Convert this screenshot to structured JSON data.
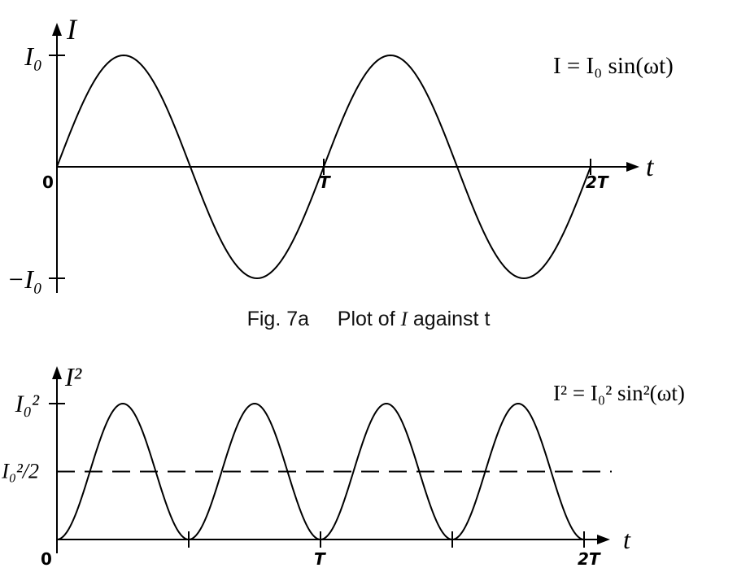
{
  "figure_a": {
    "caption_prefix": "Fig. 7a",
    "caption_text": "Plot of ",
    "caption_var": "I",
    "caption_suffix": " against t"
  },
  "chart_data": [
    {
      "type": "line",
      "ylabel": "I",
      "xlabel": "t",
      "equation": "I = I₀ sin(ωt)",
      "x_ticks": [
        {
          "value": 0,
          "label": "0"
        },
        {
          "value": 1,
          "label": "T"
        },
        {
          "value": 2,
          "label": "2T"
        }
      ],
      "y_ticks": [
        {
          "value": 1,
          "label": "I₀"
        },
        {
          "value": -1,
          "label": "−I₀"
        }
      ],
      "xlim": [
        0,
        2
      ],
      "ylim": [
        -1,
        1
      ],
      "series": [
        {
          "function": "sin",
          "x": [
            0,
            0.25,
            0.5,
            0.75,
            1.0,
            1.25,
            1.5,
            1.75,
            2.0
          ],
          "y": [
            0,
            1,
            0,
            -1,
            0,
            1,
            0,
            -1,
            0
          ]
        }
      ]
    },
    {
      "type": "line",
      "ylabel": "I²",
      "xlabel": "t",
      "equation": "I² = I₀² sin²(ωt)",
      "x_ticks": [
        {
          "value": 0,
          "label": "0"
        },
        {
          "value": 1,
          "label": "T"
        },
        {
          "value": 2,
          "label": "2T"
        }
      ],
      "y_ticks": [
        {
          "value": 1,
          "label": "I₀²"
        },
        {
          "value": 0.5,
          "label": "I₀²/2"
        }
      ],
      "xlim": [
        0,
        2
      ],
      "ylim": [
        0,
        1
      ],
      "series": [
        {
          "function": "sin_squared",
          "x": [
            0,
            0.25,
            0.5,
            0.75,
            1.0,
            1.25,
            1.5,
            1.75,
            2.0
          ],
          "y": [
            0,
            1,
            0,
            1,
            0,
            1,
            0,
            1,
            0
          ]
        },
        {
          "function": "constant",
          "style": "dashed",
          "value": 0.5
        }
      ]
    }
  ]
}
